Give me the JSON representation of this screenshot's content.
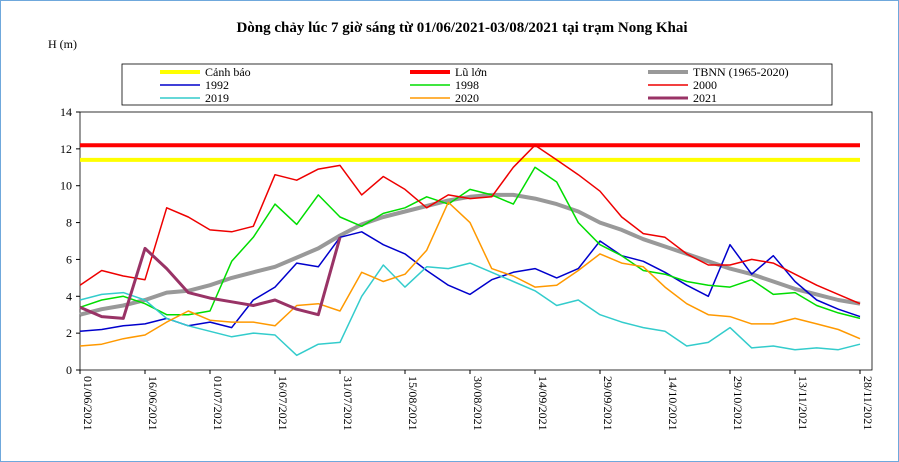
{
  "chart_data": {
    "type": "line",
    "title": "Dòng chảy lúc 7 giờ sáng từ 01/06/2021-03/08/2021 tại trạm Nong Khai",
    "y_label": "H (m)",
    "categories": [
      "01/06/2021",
      null,
      null,
      "16/06/2021",
      null,
      null,
      "01/07/2021",
      null,
      null,
      "16/07/2021",
      null,
      null,
      "31/07/2021",
      null,
      null,
      "15/08/2021",
      null,
      null,
      "30/08/2021",
      null,
      null,
      "14/09/2021",
      null,
      null,
      "29/09/2021",
      null,
      null,
      "14/10/2021",
      null,
      null,
      "29/10/2021",
      null,
      null,
      "13/11/2021",
      null,
      null,
      "28/11/2021"
    ],
    "ylim": [
      0,
      14
    ],
    "yticks": [
      0,
      2,
      4,
      6,
      8,
      10,
      12,
      14
    ],
    "grid": false,
    "series": [
      {
        "name": "Cảnh báo",
        "color": "#ffff00",
        "linewidth": 4,
        "values": [
          11.4,
          11.4,
          11.4,
          11.4,
          11.4,
          11.4,
          11.4,
          11.4,
          11.4,
          11.4,
          11.4,
          11.4,
          11.4,
          11.4,
          11.4,
          11.4,
          11.4,
          11.4,
          11.4,
          11.4,
          11.4,
          11.4,
          11.4,
          11.4,
          11.4,
          11.4,
          11.4,
          11.4,
          11.4,
          11.4,
          11.4,
          11.4,
          11.4,
          11.4,
          11.4,
          11.4,
          11.4
        ]
      },
      {
        "name": "Lũ lớn",
        "color": "#ff0000",
        "linewidth": 4,
        "values": [
          12.2,
          12.2,
          12.2,
          12.2,
          12.2,
          12.2,
          12.2,
          12.2,
          12.2,
          12.2,
          12.2,
          12.2,
          12.2,
          12.2,
          12.2,
          12.2,
          12.2,
          12.2,
          12.2,
          12.2,
          12.2,
          12.2,
          12.2,
          12.2,
          12.2,
          12.2,
          12.2,
          12.2,
          12.2,
          12.2,
          12.2,
          12.2,
          12.2,
          12.2,
          12.2,
          12.2,
          12.2
        ]
      },
      {
        "name": "TBNN (1965-2020)",
        "color": "#999999",
        "linewidth": 4,
        "values": [
          3.0,
          3.3,
          3.5,
          3.8,
          4.2,
          4.3,
          4.6,
          5.0,
          5.3,
          5.6,
          6.1,
          6.6,
          7.3,
          7.9,
          8.3,
          8.6,
          8.9,
          9.2,
          9.4,
          9.5,
          9.5,
          9.3,
          9.0,
          8.6,
          8.0,
          7.6,
          7.1,
          6.7,
          6.3,
          5.9,
          5.5,
          5.2,
          4.8,
          4.4,
          4.1,
          3.8,
          3.6
        ]
      },
      {
        "name": "1992",
        "color": "#0000cc",
        "linewidth": 1.5,
        "values": [
          2.1,
          2.2,
          2.4,
          2.5,
          2.8,
          2.4,
          2.6,
          2.3,
          3.8,
          4.5,
          5.8,
          5.6,
          7.2,
          7.5,
          6.8,
          6.3,
          5.4,
          4.6,
          4.1,
          4.9,
          5.3,
          5.5,
          5.0,
          5.5,
          7.0,
          6.2,
          5.9,
          5.3,
          4.6,
          4.0,
          6.8,
          5.2,
          6.2,
          4.8,
          3.8,
          3.3,
          2.9
        ]
      },
      {
        "name": "1998",
        "color": "#00dd00",
        "linewidth": 1.5,
        "values": [
          3.4,
          3.8,
          4.0,
          3.6,
          3.0,
          3.0,
          3.2,
          5.9,
          7.2,
          9.0,
          7.9,
          9.5,
          8.3,
          7.8,
          8.5,
          8.8,
          9.4,
          9.0,
          9.8,
          9.5,
          9.0,
          11.0,
          10.2,
          8.0,
          6.8,
          6.2,
          5.4,
          5.2,
          4.8,
          4.6,
          4.5,
          4.9,
          4.1,
          4.2,
          3.5,
          3.1,
          2.8
        ]
      },
      {
        "name": "2000",
        "color": "#ee0000",
        "linewidth": 1.5,
        "values": [
          4.6,
          5.4,
          5.1,
          4.9,
          8.8,
          8.3,
          7.6,
          7.5,
          7.8,
          10.6,
          10.3,
          10.9,
          11.1,
          9.5,
          10.5,
          9.8,
          8.8,
          9.5,
          9.3,
          9.4,
          11.0,
          12.2,
          11.4,
          10.6,
          9.7,
          8.3,
          7.4,
          7.2,
          6.3,
          5.7,
          5.7,
          6.0,
          5.8,
          5.2,
          4.6,
          4.1,
          3.6
        ]
      },
      {
        "name": "2019",
        "color": "#33cccc",
        "linewidth": 1.5,
        "values": [
          3.8,
          4.1,
          4.2,
          3.8,
          2.8,
          2.4,
          2.1,
          1.8,
          2.0,
          1.9,
          0.8,
          1.4,
          1.5,
          4.0,
          5.7,
          4.5,
          5.6,
          5.5,
          5.8,
          5.3,
          4.8,
          4.3,
          3.5,
          3.8,
          3.0,
          2.6,
          2.3,
          2.1,
          1.3,
          1.5,
          2.3,
          1.2,
          1.3,
          1.1,
          1.2,
          1.1,
          1.4
        ]
      },
      {
        "name": "2020",
        "color": "#ff9900",
        "linewidth": 1.5,
        "values": [
          1.3,
          1.4,
          1.7,
          1.9,
          2.6,
          3.2,
          2.7,
          2.6,
          2.6,
          2.4,
          3.5,
          3.6,
          3.2,
          5.3,
          4.8,
          5.2,
          6.5,
          9.1,
          8.0,
          5.5,
          5.1,
          4.5,
          4.6,
          5.4,
          6.3,
          5.8,
          5.6,
          4.5,
          3.6,
          3.0,
          2.9,
          2.5,
          2.5,
          2.8,
          2.5,
          2.2,
          1.7
        ]
      },
      {
        "name": "2021",
        "color": "#993366",
        "linewidth": 3,
        "values": [
          3.4,
          2.9,
          2.8,
          6.6,
          5.5,
          4.2,
          3.9,
          3.7,
          3.5,
          3.8,
          3.3,
          3.0,
          7.2,
          null,
          null,
          null,
          null,
          null,
          null,
          null,
          null,
          null,
          null,
          null,
          null,
          null,
          null,
          null,
          null,
          null,
          null,
          null,
          null,
          null,
          null,
          null,
          null
        ]
      }
    ]
  }
}
